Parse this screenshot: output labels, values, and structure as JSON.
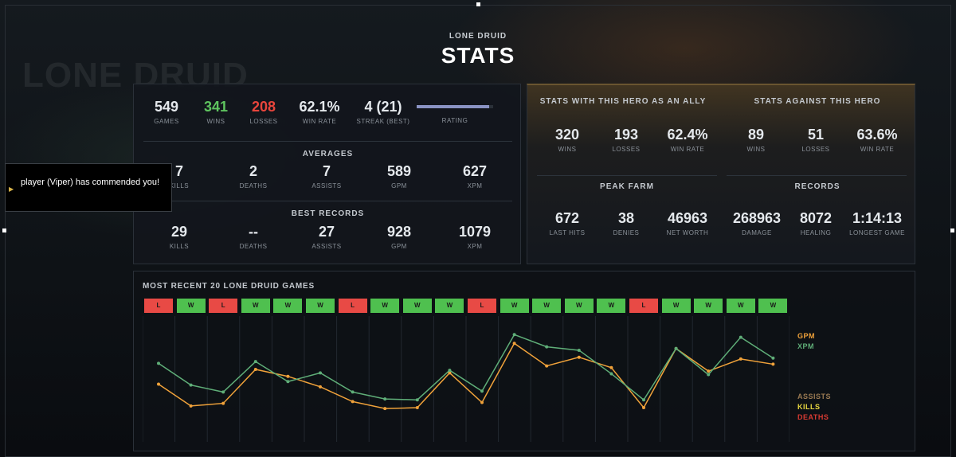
{
  "background": {
    "hero_name": "LONE DRUID"
  },
  "header": {
    "hero": "LONE DRUID",
    "title": "STATS"
  },
  "summary": {
    "games": {
      "value": "549",
      "label": "GAMES"
    },
    "wins": {
      "value": "341",
      "label": "WINS"
    },
    "losses": {
      "value": "208",
      "label": "LOSSES"
    },
    "win_rate": {
      "value": "62.1%",
      "label": "WIN RATE"
    },
    "streak": {
      "value": "4 (21)",
      "label": "STREAK (BEST)"
    },
    "rating": {
      "label": "RATING",
      "fill_fraction": 0.95
    }
  },
  "averages": {
    "title": "AVERAGES",
    "kills": {
      "value": "7",
      "label": "KILLS"
    },
    "deaths": {
      "value": "2",
      "label": "DEATHS"
    },
    "assists": {
      "value": "7",
      "label": "ASSISTS"
    },
    "gpm": {
      "value": "589",
      "label": "GPM"
    },
    "xpm": {
      "value": "627",
      "label": "XPM"
    }
  },
  "best_records": {
    "title": "BEST RECORDS",
    "kills": {
      "value": "29",
      "label": "KILLS"
    },
    "deaths": {
      "value": "--",
      "label": "DEATHS"
    },
    "assists": {
      "value": "27",
      "label": "ASSISTS"
    },
    "gpm": {
      "value": "928",
      "label": "GPM"
    },
    "xpm": {
      "value": "1079",
      "label": "XPM"
    }
  },
  "ally": {
    "title": "STATS WITH THIS HERO AS AN ALLY",
    "wins": {
      "value": "320",
      "label": "WINS"
    },
    "losses": {
      "value": "193",
      "label": "LOSSES"
    },
    "win_rate": {
      "value": "62.4%",
      "label": "WIN RATE"
    }
  },
  "against": {
    "title": "STATS AGAINST THIS HERO",
    "wins": {
      "value": "89",
      "label": "WINS"
    },
    "losses": {
      "value": "51",
      "label": "LOSSES"
    },
    "win_rate": {
      "value": "63.6%",
      "label": "WIN RATE"
    }
  },
  "peak_farm": {
    "title": "PEAK FARM",
    "last_hits": {
      "value": "672",
      "label": "LAST HITS"
    },
    "denies": {
      "value": "38",
      "label": "DENIES"
    },
    "net_worth": {
      "value": "46963",
      "label": "NET WORTH"
    }
  },
  "records": {
    "title": "RECORDS",
    "damage": {
      "value": "268963",
      "label": "DAMAGE"
    },
    "healing": {
      "value": "8072",
      "label": "HEALING"
    },
    "longest_game": {
      "value": "1:14:13",
      "label": "LONGEST GAME"
    }
  },
  "notification": {
    "text": "player (Viper) has commended you!"
  },
  "recent_games": {
    "title": "MOST RECENT 20 LONE DRUID GAMES",
    "results": [
      "L",
      "W",
      "L",
      "W",
      "W",
      "W",
      "L",
      "W",
      "W",
      "W",
      "L",
      "W",
      "W",
      "W",
      "W",
      "L",
      "W",
      "W",
      "W",
      "W"
    ],
    "legend": {
      "gpm": "GPM",
      "xpm": "XPM",
      "assists": "ASSISTS",
      "kills": "KILLS",
      "deaths": "DEATHS"
    },
    "colors": {
      "gpm": "#f0a23a",
      "xpm": "#5fae78",
      "assists": "#9a7a52",
      "kills": "#e8d840",
      "deaths": "#d83a32",
      "win": "#4fc04f",
      "loss": "#e84a45"
    }
  },
  "chart_data": {
    "type": "line",
    "title": "MOST RECENT 20 LONE DRUID GAMES",
    "x": [
      1,
      2,
      3,
      4,
      5,
      6,
      7,
      8,
      9,
      10,
      11,
      12,
      13,
      14,
      15,
      16,
      17,
      18,
      19,
      20
    ],
    "series": [
      {
        "name": "GPM",
        "values": [
          545,
          420,
          435,
          630,
          590,
          530,
          445,
          405,
          410,
          610,
          440,
          780,
          650,
          700,
          640,
          410,
          750,
          620,
          690,
          660
        ]
      },
      {
        "name": "XPM",
        "values": [
          665,
          540,
          500,
          675,
          560,
          610,
          500,
          460,
          455,
          625,
          505,
          830,
          760,
          740,
          605,
          455,
          750,
          600,
          815,
          695
        ]
      }
    ]
  }
}
